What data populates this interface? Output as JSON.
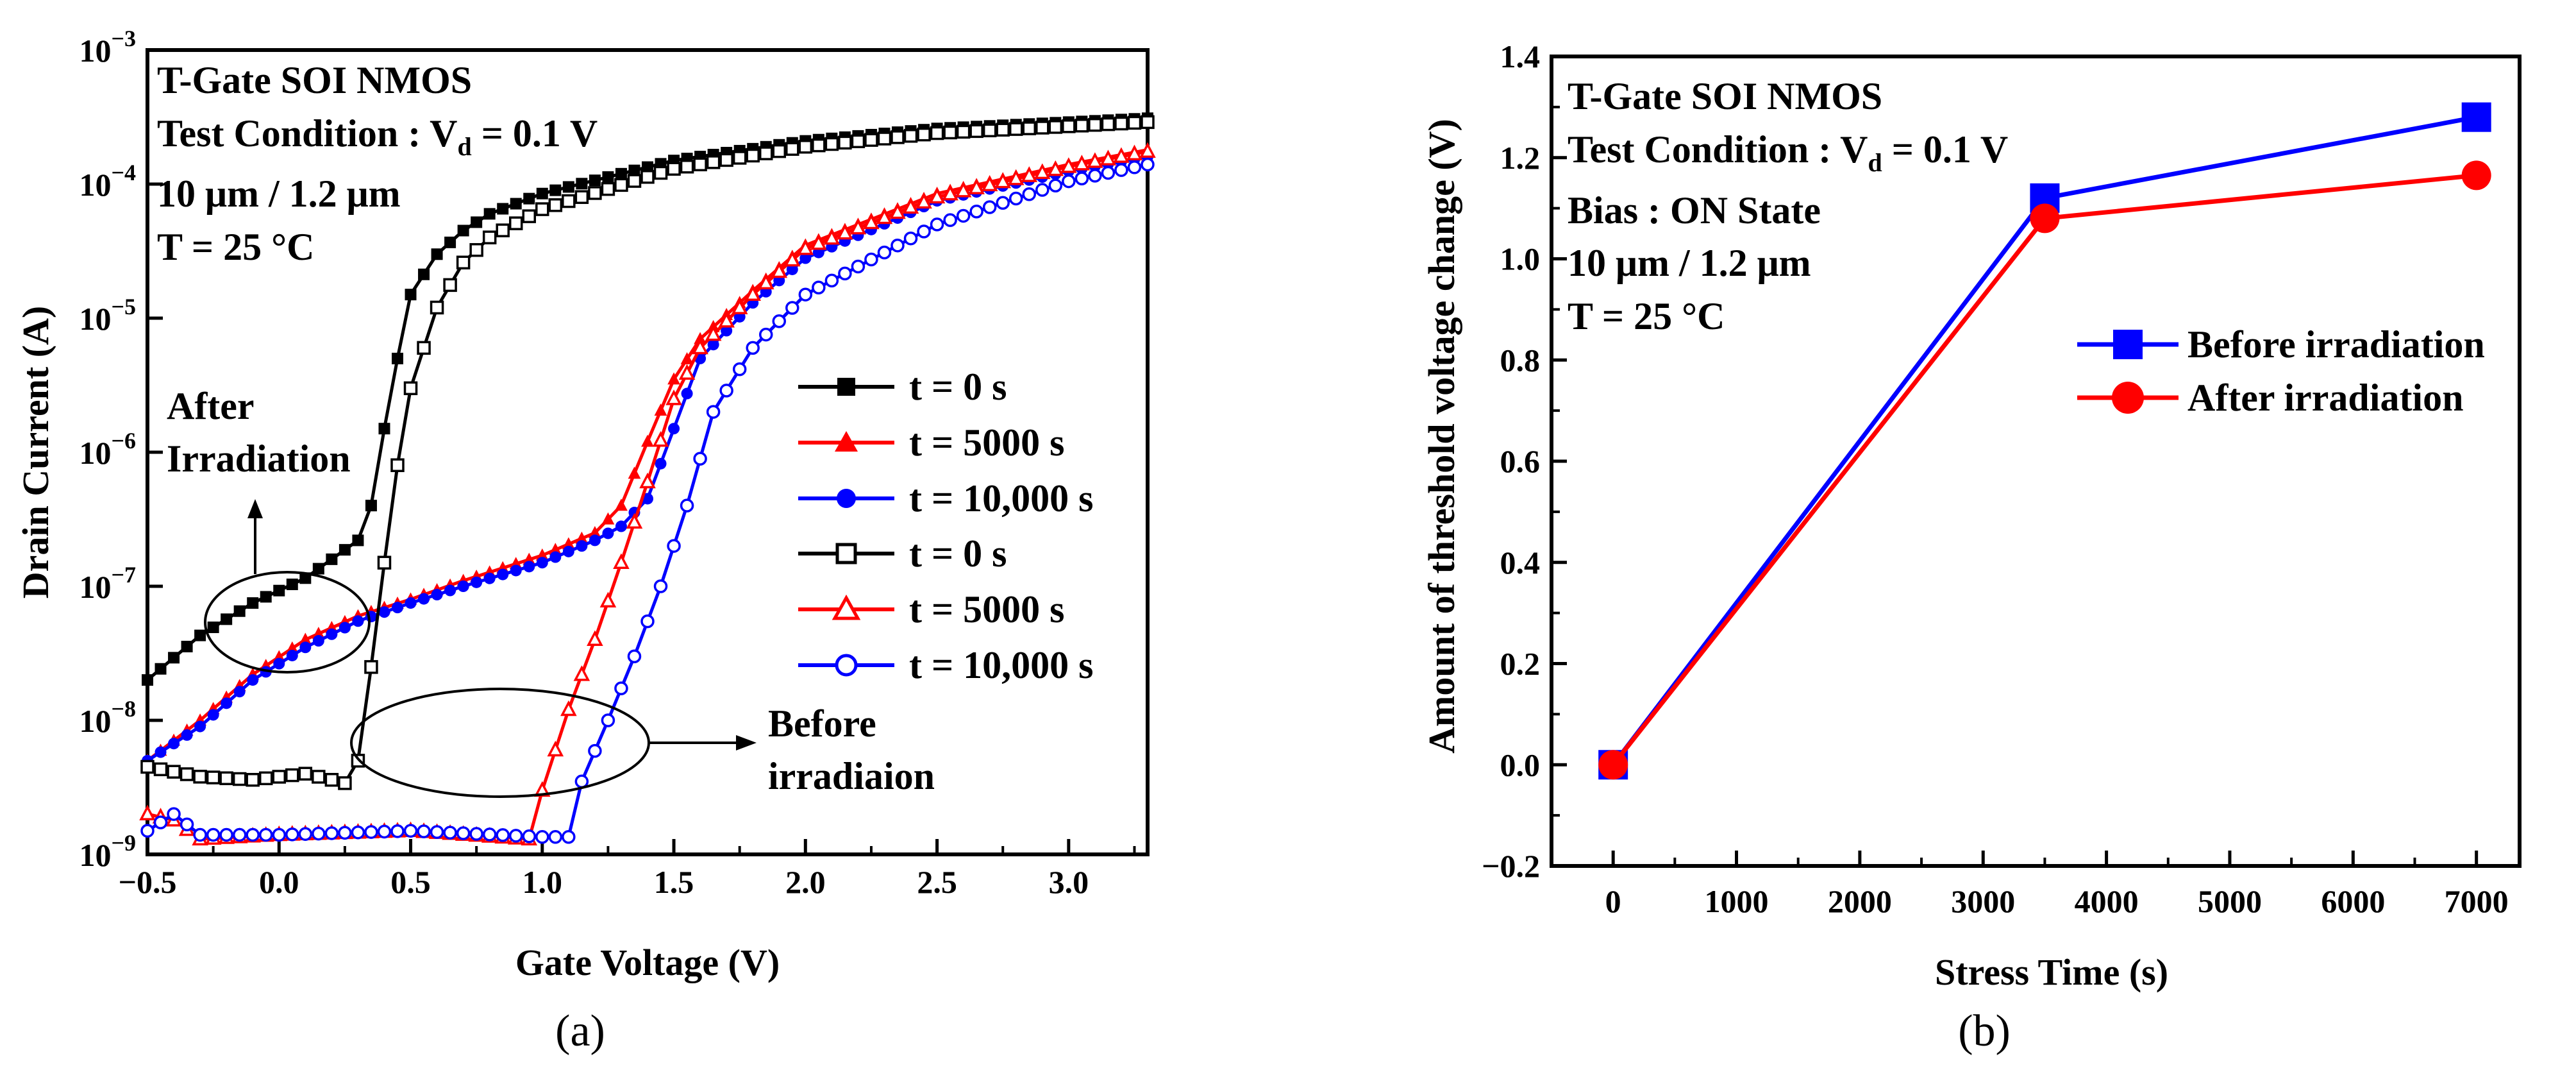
{
  "chart_data": [
    {
      "panel": "(a)",
      "type": "line",
      "yscale": "log",
      "xlabel": "Gate Voltage (V)",
      "ylabel": "Drain Current (A)",
      "xlim": [
        -0.5,
        3.3
      ],
      "ylim": [
        1e-09,
        0.001
      ],
      "xticks": [
        -0.5,
        0.0,
        0.5,
        1.0,
        1.5,
        2.0,
        2.5,
        3.0
      ],
      "xtick_labels": [
        "−0.5",
        "0.0",
        "0.5",
        "1.0",
        "1.5",
        "2.0",
        "2.5",
        "3.0"
      ],
      "yticks_exp": [
        -9,
        -8,
        -7,
        -6,
        -5,
        -4,
        -3
      ],
      "ytick_base": "10",
      "annotations": {
        "line1": "T-Gate SOI NMOS",
        "line2_prefix": "Test Condition : V",
        "line2_sub": "d",
        "line2_suffix": " = 0.1 V",
        "line3": "10 μm / 1.2 μm",
        "line4": "T = 25 °C",
        "after_1": "After",
        "after_2": "Irradiation",
        "before_1": "Before",
        "before_2": "irradiaion"
      },
      "legend_labels": [
        "t = 0 s",
        "t = 5000 s",
        "t = 10,000 s",
        "t = 0 s",
        "t = 5000 s",
        "t = 10,000 s"
      ],
      "series": [
        {
          "name": "t = 0 s",
          "group": "after",
          "color": "#000000",
          "marker": "square",
          "filled": true,
          "points": [
            [
              -0.5,
              2e-08
            ],
            [
              -0.3,
              4.3e-08
            ],
            [
              -0.1,
              7.5e-08
            ],
            [
              0.1,
              1.15e-07
            ],
            [
              0.3,
              2.2e-07
            ],
            [
              0.35,
              4e-07
            ],
            [
              0.4,
              1.5e-06
            ],
            [
              0.45,
              5e-06
            ],
            [
              0.5,
              1.5e-05
            ],
            [
              0.6,
              3e-05
            ],
            [
              0.7,
              4.5e-05
            ],
            [
              0.8,
              6e-05
            ],
            [
              1.0,
              8.5e-05
            ],
            [
              1.5,
              0.00015
            ],
            [
              2.0,
              0.00021
            ],
            [
              2.5,
              0.00026
            ],
            [
              3.0,
              0.00029
            ],
            [
              3.3,
              0.00031
            ]
          ]
        },
        {
          "name": "t = 5000 s",
          "group": "after",
          "color": "#ff0000",
          "marker": "triangle",
          "filled": true,
          "points": [
            [
              -0.5,
              5e-09
            ],
            [
              -0.3,
              1e-08
            ],
            [
              -0.1,
              2.2e-08
            ],
            [
              0.1,
              4e-08
            ],
            [
              0.3,
              6e-08
            ],
            [
              0.5,
              8e-08
            ],
            [
              0.7,
              1.1e-07
            ],
            [
              1.0,
              1.7e-07
            ],
            [
              1.2,
              2.5e-07
            ],
            [
              1.3,
              4e-07
            ],
            [
              1.4,
              1.2e-06
            ],
            [
              1.5,
              3.5e-06
            ],
            [
              1.6,
              7e-06
            ],
            [
              1.8,
              1.6e-05
            ],
            [
              2.0,
              3.5e-05
            ],
            [
              2.5,
              8.5e-05
            ],
            [
              3.0,
              0.00014
            ],
            [
              3.3,
              0.00018
            ]
          ]
        },
        {
          "name": "t = 10,000 s",
          "group": "after",
          "color": "#0000ff",
          "marker": "circle",
          "filled": true,
          "points": [
            [
              -0.5,
              5e-09
            ],
            [
              -0.3,
              9e-09
            ],
            [
              -0.1,
              2e-08
            ],
            [
              0.1,
              3.5e-08
            ],
            [
              0.3,
              5.5e-08
            ],
            [
              0.5,
              7.5e-08
            ],
            [
              0.7,
              1e-07
            ],
            [
              1.0,
              1.5e-07
            ],
            [
              1.2,
              2.2e-07
            ],
            [
              1.3,
              2.8e-07
            ],
            [
              1.4,
              4.5e-07
            ],
            [
              1.5,
              1.5e-06
            ],
            [
              1.6,
              5e-06
            ],
            [
              1.8,
              1.3e-05
            ],
            [
              2.0,
              2.8e-05
            ],
            [
              2.5,
              7.5e-05
            ],
            [
              3.0,
              0.000125
            ],
            [
              3.3,
              0.00016
            ]
          ]
        },
        {
          "name": "t = 0 s",
          "group": "before",
          "color": "#000000",
          "marker": "square",
          "filled": false,
          "points": [
            [
              -0.5,
              4.5e-09
            ],
            [
              -0.3,
              3.8e-09
            ],
            [
              -0.1,
              3.6e-09
            ],
            [
              0.1,
              4e-09
            ],
            [
              0.2,
              3.6e-09
            ],
            [
              0.25,
              3.4e-09
            ],
            [
              0.3,
              5e-09
            ],
            [
              0.35,
              2.5e-08
            ],
            [
              0.4,
              1.5e-07
            ],
            [
              0.45,
              8e-07
            ],
            [
              0.5,
              3e-06
            ],
            [
              0.6,
              1.2e-05
            ],
            [
              0.7,
              2.6e-05
            ],
            [
              0.8,
              4e-05
            ],
            [
              1.0,
              6.5e-05
            ],
            [
              1.5,
              0.00013
            ],
            [
              2.0,
              0.00019
            ],
            [
              2.5,
              0.00024
            ],
            [
              3.0,
              0.00027
            ],
            [
              3.3,
              0.00029
            ]
          ]
        },
        {
          "name": "t = 5000 s",
          "group": "before",
          "color": "#ff0000",
          "marker": "triangle",
          "filled": false,
          "points": [
            [
              -0.5,
              2e-09
            ],
            [
              -0.4,
              1.8e-09
            ],
            [
              -0.3,
              1.3e-09
            ],
            [
              0.0,
              1.4e-09
            ],
            [
              0.5,
              1.5e-09
            ],
            [
              0.95,
              1.3e-09
            ],
            [
              1.0,
              3e-09
            ],
            [
              1.1,
              1.2e-08
            ],
            [
              1.2,
              4e-08
            ],
            [
              1.3,
              1.5e-07
            ],
            [
              1.4,
              6e-07
            ],
            [
              1.5,
              2.5e-06
            ],
            [
              1.6,
              6e-06
            ],
            [
              1.8,
              1.5e-05
            ],
            [
              2.0,
              3.3e-05
            ],
            [
              2.5,
              8e-05
            ],
            [
              3.0,
              0.000135
            ],
            [
              3.3,
              0.000175
            ]
          ]
        },
        {
          "name": "t = 10,000 s",
          "group": "before",
          "color": "#0000ff",
          "marker": "circle",
          "filled": false,
          "points": [
            [
              -0.5,
              1.5e-09
            ],
            [
              -0.4,
              2e-09
            ],
            [
              -0.3,
              1.4e-09
            ],
            [
              0.0,
              1.4e-09
            ],
            [
              0.5,
              1.5e-09
            ],
            [
              1.0,
              1.35e-09
            ],
            [
              1.1,
              1.35e-09
            ],
            [
              1.15,
              3.5e-09
            ],
            [
              1.25,
              1e-08
            ],
            [
              1.35,
              3e-08
            ],
            [
              1.45,
              1e-07
            ],
            [
              1.55,
              4e-07
            ],
            [
              1.65,
              2e-06
            ],
            [
              1.8,
              6e-06
            ],
            [
              2.0,
              1.5e-05
            ],
            [
              2.5,
              5e-05
            ],
            [
              3.0,
              0.000105
            ],
            [
              3.3,
              0.00014
            ]
          ]
        }
      ]
    },
    {
      "panel": "(b)",
      "type": "line",
      "xlabel": "Stress Time (s)",
      "ylabel": "Amount of threshold voltage change (V)",
      "xlim": [
        -500,
        7350
      ],
      "ylim": [
        -0.2,
        1.4
      ],
      "xticks": [
        0,
        1000,
        2000,
        3000,
        4000,
        5000,
        6000,
        7000
      ],
      "yticks": [
        -0.2,
        0.0,
        0.2,
        0.4,
        0.6,
        0.8,
        1.0,
        1.2,
        1.4
      ],
      "ytick_labels": [
        "−0.2",
        "0.0",
        "0.2",
        "0.4",
        "0.6",
        "0.8",
        "1.0",
        "1.2",
        "1.4"
      ],
      "annotations": {
        "line1": "T-Gate SOI NMOS",
        "line2_prefix": "Test Condition : V",
        "line2_sub": "d",
        "line2_suffix": " = 0.1 V",
        "line3": "Bias : ON State",
        "line4": "10 μm / 1.2 μm",
        "line5": "T = 25 °C"
      },
      "series": [
        {
          "name": "Before irradiation",
          "color": "#0000ff",
          "marker": "square",
          "x": [
            0,
            3500,
            7000
          ],
          "values": [
            0.0,
            1.12,
            1.28
          ]
        },
        {
          "name": "After irradiation",
          "color": "#ff0000",
          "marker": "circle",
          "x": [
            0,
            3500,
            7000
          ],
          "values": [
            0.0,
            1.08,
            1.165
          ]
        }
      ]
    }
  ]
}
